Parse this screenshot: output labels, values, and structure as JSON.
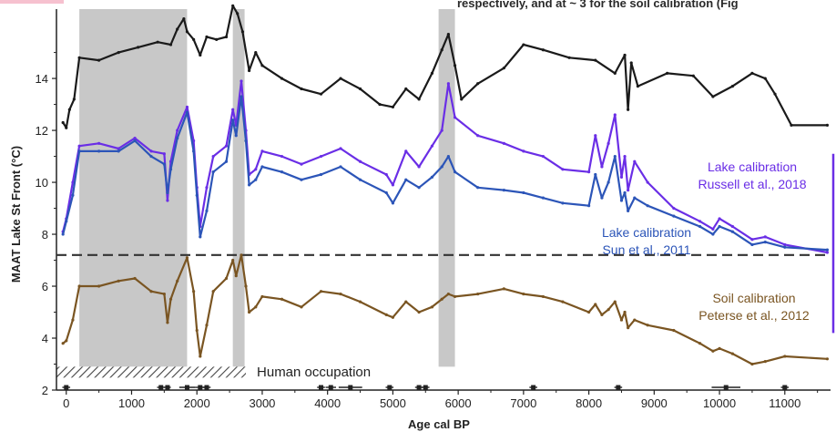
{
  "caption": {
    "top_text": "respectively, and at ~ 3 for the soil calibration (Fig"
  },
  "chart_data": {
    "type": "line",
    "title": "",
    "xlabel": "Age cal BP",
    "ylabel": "MAAT Lake St Front (°C)",
    "xlim": [
      -150,
      11700
    ],
    "ylim": [
      2,
      16.6
    ],
    "x_ticks": [
      0,
      1000,
      2000,
      3000,
      4000,
      5000,
      6000,
      7000,
      8000,
      9000,
      10000,
      11000
    ],
    "y_ticks": [
      2,
      4,
      6,
      8,
      10,
      12,
      14
    ],
    "grid": false,
    "shaded_intervals": [
      [
        200,
        1850
      ],
      [
        2550,
        2730
      ],
      [
        5700,
        5950
      ]
    ],
    "dashed_reference_y": 7.2,
    "human_occupation": {
      "label": "Human occupation",
      "x_range": [
        -150,
        2750
      ]
    },
    "colors": {
      "top": "#1a1a1a",
      "russell": "#6a2ee6",
      "sun": "#2c55b8",
      "soil": "#7a5522",
      "shade": "#c8c8c8",
      "dashed": "#333333"
    },
    "series": [
      {
        "key": "top",
        "points": [
          [
            -50,
            12.3
          ],
          [
            0,
            12.1
          ],
          [
            50,
            12.8
          ],
          [
            120,
            13.2
          ],
          [
            200,
            14.8
          ],
          [
            500,
            14.7
          ],
          [
            800,
            15.0
          ],
          [
            1100,
            15.2
          ],
          [
            1400,
            15.4
          ],
          [
            1600,
            15.3
          ],
          [
            1700,
            15.9
          ],
          [
            1800,
            16.3
          ],
          [
            1850,
            15.8
          ],
          [
            1950,
            15.5
          ],
          [
            2050,
            14.9
          ],
          [
            2150,
            15.6
          ],
          [
            2300,
            15.5
          ],
          [
            2450,
            15.6
          ],
          [
            2550,
            16.8
          ],
          [
            2620,
            16.5
          ],
          [
            2700,
            15.8
          ],
          [
            2800,
            14.3
          ],
          [
            2900,
            15.0
          ],
          [
            3000,
            14.5
          ],
          [
            3300,
            14.0
          ],
          [
            3600,
            13.6
          ],
          [
            3900,
            13.4
          ],
          [
            4200,
            14.0
          ],
          [
            4500,
            13.6
          ],
          [
            4800,
            13.0
          ],
          [
            5000,
            12.9
          ],
          [
            5200,
            13.6
          ],
          [
            5400,
            13.2
          ],
          [
            5600,
            14.2
          ],
          [
            5750,
            15.1
          ],
          [
            5850,
            15.7
          ],
          [
            5950,
            14.5
          ],
          [
            6050,
            13.2
          ],
          [
            6300,
            13.8
          ],
          [
            6700,
            14.4
          ],
          [
            7000,
            15.3
          ],
          [
            7300,
            15.1
          ],
          [
            7700,
            14.8
          ],
          [
            8100,
            14.7
          ],
          [
            8400,
            14.2
          ],
          [
            8550,
            14.9
          ],
          [
            8600,
            12.8
          ],
          [
            8650,
            14.6
          ],
          [
            8750,
            13.7
          ],
          [
            9200,
            14.2
          ],
          [
            9600,
            14.1
          ],
          [
            9900,
            13.3
          ],
          [
            10200,
            13.7
          ],
          [
            10500,
            14.2
          ],
          [
            10700,
            14.0
          ],
          [
            10850,
            13.4
          ],
          [
            11100,
            12.2
          ],
          [
            11650,
            12.2
          ]
        ]
      },
      {
        "key": "russell",
        "points": [
          [
            -50,
            8.1
          ],
          [
            0,
            8.6
          ],
          [
            100,
            10.0
          ],
          [
            200,
            11.4
          ],
          [
            500,
            11.5
          ],
          [
            800,
            11.3
          ],
          [
            1050,
            11.7
          ],
          [
            1300,
            11.2
          ],
          [
            1500,
            11.1
          ],
          [
            1550,
            9.3
          ],
          [
            1600,
            10.8
          ],
          [
            1700,
            12.0
          ],
          [
            1850,
            12.9
          ],
          [
            1950,
            11.6
          ],
          [
            2000,
            9.8
          ],
          [
            2050,
            8.3
          ],
          [
            2150,
            9.8
          ],
          [
            2250,
            11.0
          ],
          [
            2450,
            11.4
          ],
          [
            2550,
            12.8
          ],
          [
            2600,
            12.2
          ],
          [
            2680,
            13.9
          ],
          [
            2750,
            12.0
          ],
          [
            2800,
            10.3
          ],
          [
            2900,
            10.5
          ],
          [
            3000,
            11.2
          ],
          [
            3300,
            11.0
          ],
          [
            3600,
            10.7
          ],
          [
            3900,
            11.0
          ],
          [
            4200,
            11.3
          ],
          [
            4500,
            10.8
          ],
          [
            4900,
            10.3
          ],
          [
            5000,
            9.9
          ],
          [
            5200,
            11.2
          ],
          [
            5400,
            10.6
          ],
          [
            5600,
            11.4
          ],
          [
            5750,
            12.0
          ],
          [
            5850,
            13.8
          ],
          [
            5950,
            12.5
          ],
          [
            6300,
            11.8
          ],
          [
            6700,
            11.5
          ],
          [
            7000,
            11.2
          ],
          [
            7300,
            11.0
          ],
          [
            7600,
            10.5
          ],
          [
            8000,
            10.4
          ],
          [
            8100,
            11.8
          ],
          [
            8200,
            10.6
          ],
          [
            8300,
            11.5
          ],
          [
            8400,
            12.6
          ],
          [
            8500,
            10.2
          ],
          [
            8550,
            11.0
          ],
          [
            8600,
            9.7
          ],
          [
            8700,
            10.8
          ],
          [
            8900,
            10.0
          ],
          [
            9300,
            9.0
          ],
          [
            9700,
            8.5
          ],
          [
            9900,
            8.2
          ],
          [
            10000,
            8.6
          ],
          [
            10200,
            8.3
          ],
          [
            10500,
            7.8
          ],
          [
            10700,
            7.9
          ],
          [
            11000,
            7.6
          ],
          [
            11650,
            7.3
          ]
        ]
      },
      {
        "key": "sun",
        "points": [
          [
            -50,
            8.0
          ],
          [
            0,
            8.5
          ],
          [
            100,
            9.5
          ],
          [
            200,
            11.2
          ],
          [
            500,
            11.2
          ],
          [
            800,
            11.2
          ],
          [
            1050,
            11.6
          ],
          [
            1300,
            11.0
          ],
          [
            1500,
            10.7
          ],
          [
            1550,
            9.6
          ],
          [
            1600,
            10.5
          ],
          [
            1700,
            11.7
          ],
          [
            1850,
            12.7
          ],
          [
            1950,
            11.2
          ],
          [
            2000,
            9.5
          ],
          [
            2050,
            7.9
          ],
          [
            2150,
            8.9
          ],
          [
            2250,
            10.4
          ],
          [
            2450,
            10.8
          ],
          [
            2550,
            12.4
          ],
          [
            2600,
            11.8
          ],
          [
            2680,
            13.3
          ],
          [
            2750,
            11.6
          ],
          [
            2800,
            9.9
          ],
          [
            2900,
            10.1
          ],
          [
            3000,
            10.6
          ],
          [
            3300,
            10.4
          ],
          [
            3600,
            10.1
          ],
          [
            3900,
            10.3
          ],
          [
            4200,
            10.6
          ],
          [
            4500,
            10.1
          ],
          [
            4900,
            9.6
          ],
          [
            5000,
            9.2
          ],
          [
            5200,
            10.1
          ],
          [
            5400,
            9.8
          ],
          [
            5600,
            10.2
          ],
          [
            5750,
            10.6
          ],
          [
            5850,
            11.0
          ],
          [
            5950,
            10.4
          ],
          [
            6300,
            9.8
          ],
          [
            6700,
            9.7
          ],
          [
            7000,
            9.6
          ],
          [
            7300,
            9.4
          ],
          [
            7600,
            9.2
          ],
          [
            8000,
            9.1
          ],
          [
            8100,
            10.3
          ],
          [
            8200,
            9.4
          ],
          [
            8300,
            10.0
          ],
          [
            8400,
            11.0
          ],
          [
            8500,
            9.3
          ],
          [
            8550,
            9.6
          ],
          [
            8600,
            8.9
          ],
          [
            8700,
            9.4
          ],
          [
            8900,
            9.1
          ],
          [
            9300,
            8.7
          ],
          [
            9700,
            8.3
          ],
          [
            9900,
            8.0
          ],
          [
            10000,
            8.3
          ],
          [
            10200,
            8.1
          ],
          [
            10500,
            7.6
          ],
          [
            10700,
            7.7
          ],
          [
            11000,
            7.5
          ],
          [
            11650,
            7.4
          ]
        ]
      },
      {
        "key": "soil",
        "points": [
          [
            -50,
            3.8
          ],
          [
            0,
            3.9
          ],
          [
            100,
            4.7
          ],
          [
            200,
            6.0
          ],
          [
            500,
            6.0
          ],
          [
            800,
            6.2
          ],
          [
            1050,
            6.3
          ],
          [
            1300,
            5.8
          ],
          [
            1500,
            5.7
          ],
          [
            1550,
            4.6
          ],
          [
            1600,
            5.5
          ],
          [
            1700,
            6.2
          ],
          [
            1850,
            7.1
          ],
          [
            1950,
            5.8
          ],
          [
            2000,
            4.3
          ],
          [
            2050,
            3.3
          ],
          [
            2150,
            4.5
          ],
          [
            2250,
            5.8
          ],
          [
            2450,
            6.3
          ],
          [
            2550,
            7.0
          ],
          [
            2600,
            6.4
          ],
          [
            2680,
            7.2
          ],
          [
            2750,
            6.0
          ],
          [
            2800,
            5.0
          ],
          [
            2900,
            5.2
          ],
          [
            3000,
            5.6
          ],
          [
            3300,
            5.5
          ],
          [
            3600,
            5.2
          ],
          [
            3900,
            5.8
          ],
          [
            4200,
            5.7
          ],
          [
            4500,
            5.4
          ],
          [
            4900,
            4.9
          ],
          [
            5000,
            4.8
          ],
          [
            5200,
            5.4
          ],
          [
            5400,
            5.0
          ],
          [
            5600,
            5.2
          ],
          [
            5750,
            5.5
          ],
          [
            5850,
            5.7
          ],
          [
            5950,
            5.6
          ],
          [
            6300,
            5.7
          ],
          [
            6700,
            5.9
          ],
          [
            7000,
            5.7
          ],
          [
            7300,
            5.6
          ],
          [
            7600,
            5.4
          ],
          [
            8000,
            5.0
          ],
          [
            8100,
            5.3
          ],
          [
            8200,
            4.9
          ],
          [
            8300,
            5.1
          ],
          [
            8400,
            5.4
          ],
          [
            8500,
            4.7
          ],
          [
            8550,
            5.0
          ],
          [
            8600,
            4.4
          ],
          [
            8700,
            4.7
          ],
          [
            8900,
            4.5
          ],
          [
            9300,
            4.3
          ],
          [
            9700,
            3.8
          ],
          [
            9900,
            3.5
          ],
          [
            10000,
            3.6
          ],
          [
            10200,
            3.4
          ],
          [
            10500,
            3.0
          ],
          [
            10700,
            3.1
          ],
          [
            11000,
            3.3
          ],
          [
            11650,
            3.2
          ]
        ]
      }
    ],
    "series_labels": [
      {
        "key": "russell",
        "lines": [
          "Lake calibration",
          "Russell et al., 2018"
        ]
      },
      {
        "key": "sun",
        "lines": [
          "Lake calibration",
          "Sun et al., 2011"
        ]
      },
      {
        "key": "soil",
        "lines": [
          "Soil calibration",
          "Peterse et al., 2012"
        ]
      }
    ],
    "age_control": [
      {
        "x": 0,
        "err": 60
      },
      {
        "x": 1450,
        "err": 60
      },
      {
        "x": 1550,
        "err": 50
      },
      {
        "x": 1850,
        "err": 120
      },
      {
        "x": 2050,
        "err": 80
      },
      {
        "x": 2150,
        "err": 60
      },
      {
        "x": 3900,
        "err": 60
      },
      {
        "x": 4050,
        "err": 80
      },
      {
        "x": 4350,
        "err": 180
      },
      {
        "x": 4950,
        "err": 60
      },
      {
        "x": 5400,
        "err": 60
      },
      {
        "x": 5500,
        "err": 60
      },
      {
        "x": 7150,
        "err": 60
      },
      {
        "x": 8450,
        "err": 60
      },
      {
        "x": 10100,
        "err": 220
      },
      {
        "x": 11000,
        "err": 60
      }
    ]
  }
}
